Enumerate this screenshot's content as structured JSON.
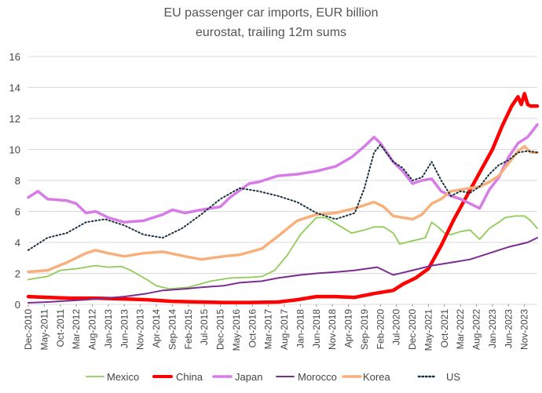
{
  "chart_data": {
    "type": "line",
    "title": "EU passenger car imports, EUR billion",
    "subtitle": "eurostat, trailing 12m sums",
    "xlabel": "",
    "ylabel": "",
    "ylim": [
      0,
      16
    ],
    "yticks": [
      0,
      2,
      4,
      6,
      8,
      10,
      12,
      14,
      16
    ],
    "grid": "horizontal",
    "legend_position": "bottom",
    "x_tick_labels": [
      "Dec-2010",
      "May-2011",
      "Oct-2011",
      "Mar-2012",
      "Aug-2012",
      "Jan-2013",
      "Jun-2013",
      "Nov-2013",
      "Apr-2014",
      "Sep-2014",
      "Feb-2015",
      "Jul-2015",
      "Dec-2015",
      "May-2016",
      "Oct-2016",
      "Mar-2017",
      "Aug-2017",
      "Jan-2018",
      "Jun-2018",
      "Nov-2018",
      "Apr-2019",
      "Sep-2019",
      "Feb-2020",
      "Jul-2020",
      "Dec-2020",
      "May-2021",
      "Oct-2021",
      "Mar-2022",
      "Aug-2022",
      "Jan-2023",
      "Jun-2023",
      "Nov-2023"
    ],
    "x_start": "2010-12",
    "x_end": "2024-03",
    "series": [
      {
        "name": "Mexico",
        "color": "#8fcc55",
        "style": "solid",
        "width": 1.8,
        "points": [
          [
            "2010-12",
            1.6
          ],
          [
            "2011-06",
            1.8
          ],
          [
            "2011-10",
            2.2
          ],
          [
            "2012-03",
            2.3
          ],
          [
            "2012-09",
            2.5
          ],
          [
            "2013-01",
            2.4
          ],
          [
            "2013-05",
            2.45
          ],
          [
            "2013-08",
            2.2
          ],
          [
            "2014-01",
            1.6
          ],
          [
            "2014-04",
            1.2
          ],
          [
            "2014-08",
            1.0
          ],
          [
            "2015-02",
            1.1
          ],
          [
            "2015-09",
            1.5
          ],
          [
            "2016-03",
            1.7
          ],
          [
            "2016-10",
            1.75
          ],
          [
            "2017-01",
            1.8
          ],
          [
            "2017-05",
            2.2
          ],
          [
            "2017-09",
            3.2
          ],
          [
            "2018-01",
            4.5
          ],
          [
            "2018-06",
            5.6
          ],
          [
            "2018-09",
            5.6
          ],
          [
            "2019-01",
            5.1
          ],
          [
            "2019-05",
            4.6
          ],
          [
            "2019-09",
            4.8
          ],
          [
            "2019-12",
            5.0
          ],
          [
            "2020-03",
            5.0
          ],
          [
            "2020-06",
            4.6
          ],
          [
            "2020-08",
            3.9
          ],
          [
            "2020-12",
            4.1
          ],
          [
            "2021-02",
            4.2
          ],
          [
            "2021-04",
            4.3
          ],
          [
            "2021-06",
            5.3
          ],
          [
            "2021-08",
            5.0
          ],
          [
            "2021-10",
            4.6
          ],
          [
            "2021-12",
            4.5
          ],
          [
            "2022-03",
            4.7
          ],
          [
            "2022-06",
            4.8
          ],
          [
            "2022-09",
            4.2
          ],
          [
            "2022-12",
            4.9
          ],
          [
            "2023-03",
            5.3
          ],
          [
            "2023-05",
            5.6
          ],
          [
            "2023-08",
            5.7
          ],
          [
            "2023-11",
            5.7
          ],
          [
            "2024-01",
            5.4
          ],
          [
            "2024-03",
            4.9
          ]
        ]
      },
      {
        "name": "China",
        "color": "#ff0000",
        "style": "solid",
        "width": 4.5,
        "points": [
          [
            "2010-12",
            0.5
          ],
          [
            "2011-06",
            0.45
          ],
          [
            "2012-01",
            0.4
          ],
          [
            "2012-09",
            0.4
          ],
          [
            "2013-06",
            0.35
          ],
          [
            "2014-01",
            0.3
          ],
          [
            "2014-09",
            0.2
          ],
          [
            "2015-06",
            0.15
          ],
          [
            "2016-01",
            0.12
          ],
          [
            "2016-09",
            0.12
          ],
          [
            "2017-06",
            0.15
          ],
          [
            "2017-12",
            0.3
          ],
          [
            "2018-06",
            0.5
          ],
          [
            "2018-12",
            0.5
          ],
          [
            "2019-06",
            0.45
          ],
          [
            "2019-12",
            0.7
          ],
          [
            "2020-06",
            0.9
          ],
          [
            "2020-09",
            1.3
          ],
          [
            "2021-01",
            1.7
          ],
          [
            "2021-05",
            2.3
          ],
          [
            "2021-09",
            3.8
          ],
          [
            "2022-01",
            5.5
          ],
          [
            "2022-05",
            7.0
          ],
          [
            "2022-09",
            8.5
          ],
          [
            "2023-01",
            10.0
          ],
          [
            "2023-04",
            11.5
          ],
          [
            "2023-07",
            12.8
          ],
          [
            "2023-09",
            13.4
          ],
          [
            "2023-10",
            12.9
          ],
          [
            "2023-11",
            13.6
          ],
          [
            "2023-12",
            12.9
          ],
          [
            "2024-01",
            12.8
          ],
          [
            "2024-03",
            12.8
          ]
        ]
      },
      {
        "name": "Japan",
        "color": "#d77ce6",
        "style": "solid",
        "width": 3.5,
        "points": [
          [
            "2010-12",
            6.9
          ],
          [
            "2011-03",
            7.3
          ],
          [
            "2011-06",
            6.8
          ],
          [
            "2011-12",
            6.7
          ],
          [
            "2012-03",
            6.5
          ],
          [
            "2012-06",
            5.9
          ],
          [
            "2012-09",
            6.0
          ],
          [
            "2013-01",
            5.6
          ],
          [
            "2013-06",
            5.3
          ],
          [
            "2013-12",
            5.4
          ],
          [
            "2014-06",
            5.8
          ],
          [
            "2014-09",
            6.1
          ],
          [
            "2015-01",
            5.9
          ],
          [
            "2015-06",
            6.1
          ],
          [
            "2015-12",
            6.3
          ],
          [
            "2016-03",
            6.9
          ],
          [
            "2016-09",
            7.8
          ],
          [
            "2016-12",
            7.9
          ],
          [
            "2017-06",
            8.3
          ],
          [
            "2017-12",
            8.4
          ],
          [
            "2018-06",
            8.6
          ],
          [
            "2018-12",
            8.9
          ],
          [
            "2019-05",
            9.5
          ],
          [
            "2019-09",
            10.2
          ],
          [
            "2019-12",
            10.8
          ],
          [
            "2020-02",
            10.4
          ],
          [
            "2020-06",
            9.2
          ],
          [
            "2020-09",
            8.6
          ],
          [
            "2020-12",
            7.8
          ],
          [
            "2021-03",
            8.0
          ],
          [
            "2021-06",
            8.1
          ],
          [
            "2021-09",
            7.3
          ],
          [
            "2021-12",
            7.0
          ],
          [
            "2022-03",
            6.8
          ],
          [
            "2022-06",
            6.5
          ],
          [
            "2022-09",
            6.2
          ],
          [
            "2022-12",
            7.4
          ],
          [
            "2023-03",
            8.2
          ],
          [
            "2023-06",
            9.5
          ],
          [
            "2023-09",
            10.4
          ],
          [
            "2023-12",
            10.8
          ],
          [
            "2024-03",
            11.6
          ]
        ]
      },
      {
        "name": "Morocco",
        "color": "#7b2d90",
        "style": "solid",
        "width": 2,
        "points": [
          [
            "2010-12",
            0.1
          ],
          [
            "2011-06",
            0.15
          ],
          [
            "2012-06",
            0.3
          ],
          [
            "2013-06",
            0.5
          ],
          [
            "2014-01",
            0.7
          ],
          [
            "2014-06",
            0.9
          ],
          [
            "2015-01",
            1.0
          ],
          [
            "2015-06",
            1.1
          ],
          [
            "2016-01",
            1.2
          ],
          [
            "2016-06",
            1.4
          ],
          [
            "2017-01",
            1.5
          ],
          [
            "2017-06",
            1.7
          ],
          [
            "2018-01",
            1.9
          ],
          [
            "2018-06",
            2.0
          ],
          [
            "2019-01",
            2.1
          ],
          [
            "2019-06",
            2.2
          ],
          [
            "2020-01",
            2.4
          ],
          [
            "2020-06",
            1.9
          ],
          [
            "2020-12",
            2.2
          ],
          [
            "2021-06",
            2.5
          ],
          [
            "2021-12",
            2.7
          ],
          [
            "2022-06",
            2.9
          ],
          [
            "2022-12",
            3.3
          ],
          [
            "2023-06",
            3.7
          ],
          [
            "2023-12",
            4.0
          ],
          [
            "2024-03",
            4.3
          ]
        ]
      },
      {
        "name": "Korea",
        "color": "#f7b07c",
        "style": "solid",
        "width": 3.5,
        "points": [
          [
            "2010-12",
            2.1
          ],
          [
            "2011-06",
            2.2
          ],
          [
            "2011-12",
            2.7
          ],
          [
            "2012-06",
            3.3
          ],
          [
            "2012-09",
            3.5
          ],
          [
            "2013-01",
            3.3
          ],
          [
            "2013-06",
            3.1
          ],
          [
            "2013-12",
            3.3
          ],
          [
            "2014-06",
            3.4
          ],
          [
            "2015-01",
            3.1
          ],
          [
            "2015-06",
            2.9
          ],
          [
            "2016-01",
            3.1
          ],
          [
            "2016-06",
            3.2
          ],
          [
            "2017-01",
            3.6
          ],
          [
            "2017-06",
            4.4
          ],
          [
            "2017-12",
            5.4
          ],
          [
            "2018-06",
            5.8
          ],
          [
            "2018-12",
            5.9
          ],
          [
            "2019-06",
            6.2
          ],
          [
            "2019-12",
            6.6
          ],
          [
            "2020-03",
            6.3
          ],
          [
            "2020-06",
            5.7
          ],
          [
            "2020-12",
            5.5
          ],
          [
            "2021-03",
            5.8
          ],
          [
            "2021-06",
            6.5
          ],
          [
            "2021-09",
            6.8
          ],
          [
            "2021-12",
            7.3
          ],
          [
            "2022-03",
            7.4
          ],
          [
            "2022-06",
            7.5
          ],
          [
            "2022-09",
            7.6
          ],
          [
            "2022-12",
            7.9
          ],
          [
            "2023-03",
            8.3
          ],
          [
            "2023-06",
            9.1
          ],
          [
            "2023-09",
            9.9
          ],
          [
            "2023-11",
            10.2
          ],
          [
            "2024-01",
            9.8
          ],
          [
            "2024-03",
            9.8
          ]
        ]
      },
      {
        "name": "US",
        "color": "#17303f",
        "style": "dotted",
        "width": 2,
        "points": [
          [
            "2010-12",
            3.5
          ],
          [
            "2011-06",
            4.3
          ],
          [
            "2011-12",
            4.6
          ],
          [
            "2012-06",
            5.3
          ],
          [
            "2012-12",
            5.5
          ],
          [
            "2013-06",
            5.1
          ],
          [
            "2013-12",
            4.5
          ],
          [
            "2014-06",
            4.3
          ],
          [
            "2014-12",
            4.9
          ],
          [
            "2015-06",
            5.8
          ],
          [
            "2015-12",
            6.8
          ],
          [
            "2016-06",
            7.5
          ],
          [
            "2016-12",
            7.3
          ],
          [
            "2017-06",
            7.0
          ],
          [
            "2017-12",
            6.6
          ],
          [
            "2018-06",
            5.9
          ],
          [
            "2018-12",
            5.5
          ],
          [
            "2019-06",
            5.9
          ],
          [
            "2019-09",
            7.5
          ],
          [
            "2019-12",
            9.8
          ],
          [
            "2020-02",
            10.3
          ],
          [
            "2020-06",
            9.2
          ],
          [
            "2020-09",
            8.8
          ],
          [
            "2020-12",
            8.0
          ],
          [
            "2021-03",
            8.2
          ],
          [
            "2021-06",
            9.2
          ],
          [
            "2021-09",
            8.0
          ],
          [
            "2021-12",
            7.0
          ],
          [
            "2022-03",
            7.3
          ],
          [
            "2022-06",
            7.2
          ],
          [
            "2022-09",
            7.6
          ],
          [
            "2022-12",
            8.4
          ],
          [
            "2023-03",
            9.0
          ],
          [
            "2023-06",
            9.3
          ],
          [
            "2023-09",
            9.8
          ],
          [
            "2023-12",
            9.9
          ],
          [
            "2024-03",
            9.8
          ]
        ]
      }
    ]
  }
}
